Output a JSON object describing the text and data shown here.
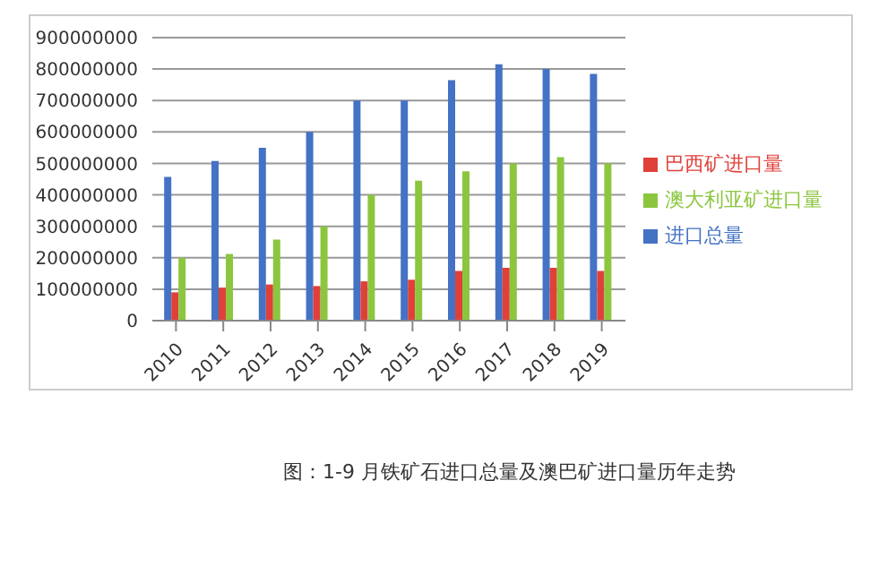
{
  "chart_data": {
    "type": "bar",
    "title": "图：1-9 月铁矿石进口总量及澳巴矿进口量历年走势",
    "categories": [
      "2010",
      "2011",
      "2012",
      "2013",
      "2014",
      "2015",
      "2016",
      "2017",
      "2018",
      "2019"
    ],
    "series": [
      {
        "name": "进口总量",
        "color": "#4472c4",
        "values": [
          457000000,
          508000000,
          550000000,
          600000000,
          700000000,
          700000000,
          765000000,
          815000000,
          800000000,
          785000000
        ]
      },
      {
        "name": "巴西矿进口量",
        "color": "#e0403a",
        "values": [
          90000000,
          105000000,
          115000000,
          110000000,
          125000000,
          130000000,
          158000000,
          168000000,
          168000000,
          158000000
        ]
      },
      {
        "name": "澳大利亚矿进口量",
        "color": "#8cc63f",
        "values": [
          200000000,
          212000000,
          258000000,
          300000000,
          400000000,
          445000000,
          475000000,
          500000000,
          520000000,
          500000000
        ]
      }
    ],
    "ylim": [
      0,
      900000000
    ],
    "yticks": [
      0,
      100000000,
      200000000,
      300000000,
      400000000,
      500000000,
      600000000,
      700000000,
      800000000,
      900000000
    ],
    "grid": "y",
    "legend": "right"
  }
}
